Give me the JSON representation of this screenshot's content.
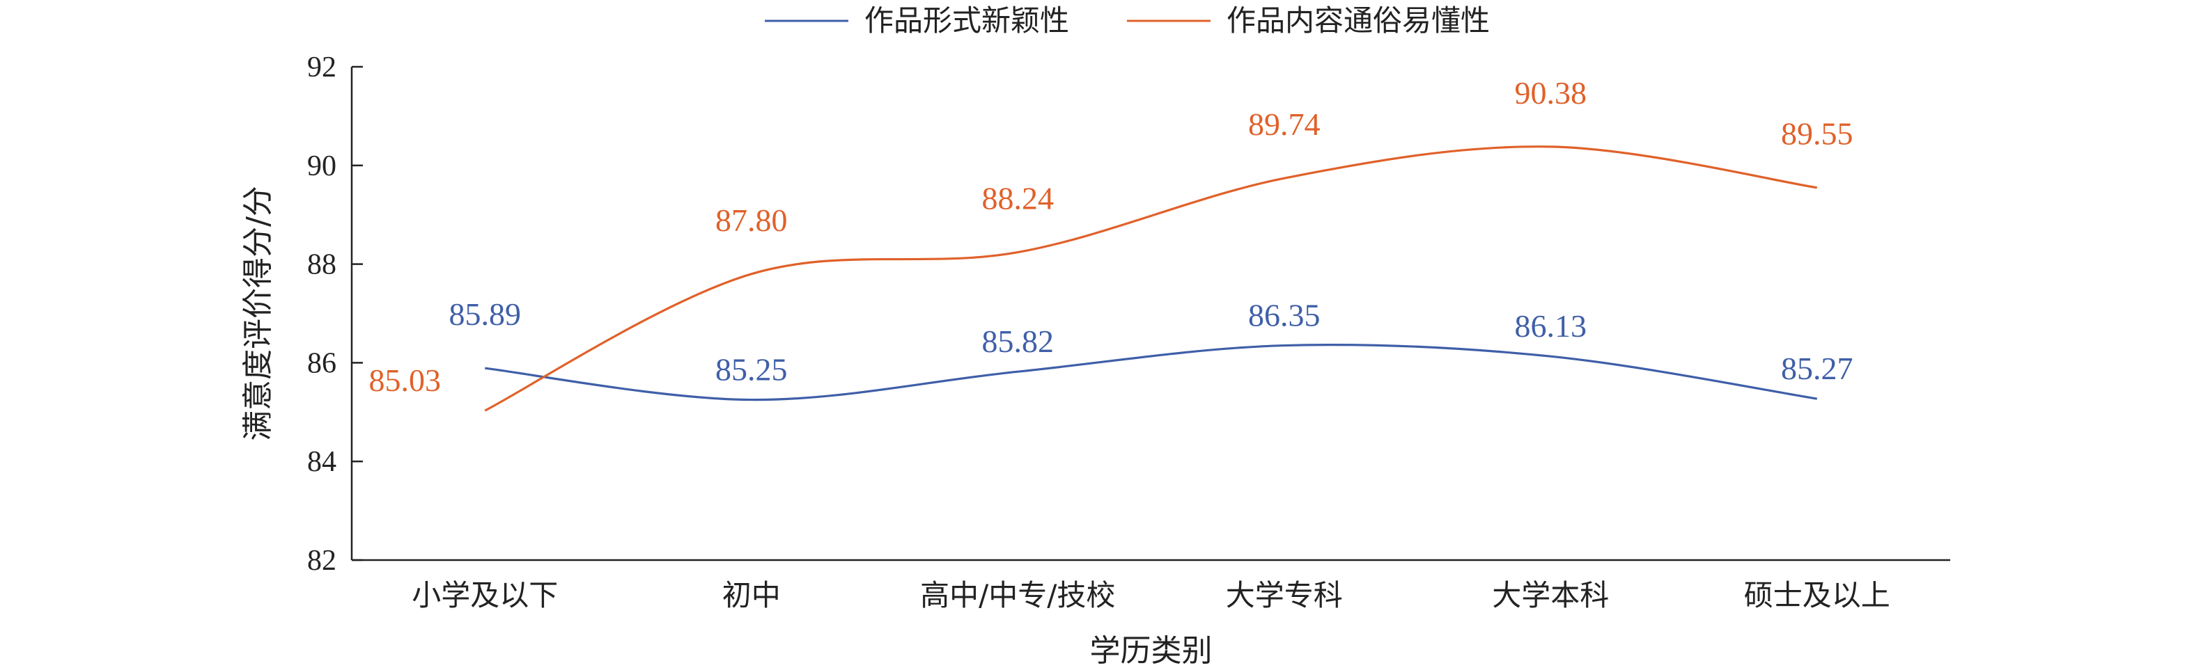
{
  "chart_data": {
    "type": "line",
    "title": "",
    "xlabel": "学历类别",
    "ylabel": "满意度评价得分/分",
    "ylim": [
      82,
      92
    ],
    "yticks": [
      82,
      84,
      86,
      88,
      90,
      92
    ],
    "grid": false,
    "legend": "top-center",
    "smooth": true,
    "categories": [
      "小学及以下",
      "初中",
      "高中/中专/技校",
      "大学专科",
      "大学本科",
      "硕士及以上"
    ],
    "series": [
      {
        "name": "作品形式新颖性",
        "color": "#3f5fa8",
        "values": [
          85.89,
          85.25,
          85.82,
          86.35,
          86.13,
          85.27
        ],
        "labels": [
          "85.89",
          "85.25",
          "85.82",
          "86.35",
          "86.13",
          "85.27"
        ]
      },
      {
        "name": "作品内容通俗易懂性",
        "color": "#e0612a",
        "values": [
          85.03,
          87.8,
          88.24,
          89.74,
          90.38,
          89.55
        ],
        "labels": [
          "85.03",
          "87.80",
          "88.24",
          "89.74",
          "90.38",
          "89.55"
        ]
      }
    ]
  }
}
